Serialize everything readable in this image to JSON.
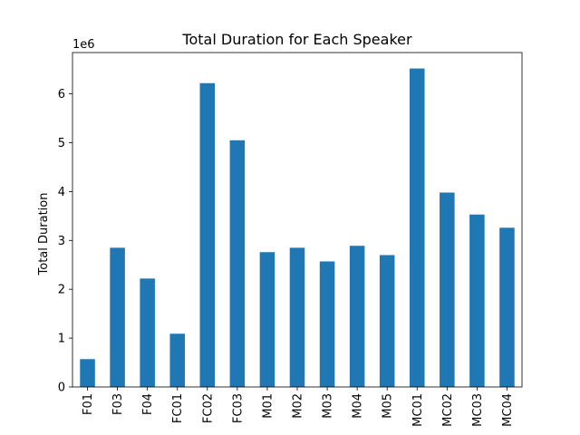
{
  "chart_data": {
    "type": "bar",
    "title": "Total Duration for Each Speaker",
    "xlabel": "",
    "ylabel": "Total Duration",
    "offset_text": "1e6",
    "categories": [
      "F01",
      "F03",
      "F04",
      "FC01",
      "FC02",
      "FC03",
      "M01",
      "M02",
      "M03",
      "M04",
      "M05",
      "MC01",
      "MC02",
      "MC03",
      "MC04"
    ],
    "values": [
      570000,
      2850000,
      2220000,
      1090000,
      6220000,
      5050000,
      2760000,
      2850000,
      2570000,
      2890000,
      2700000,
      6520000,
      3980000,
      3530000,
      3260000
    ],
    "ylim": [
      0,
      6846000
    ],
    "yticks": [
      0,
      1000000,
      2000000,
      3000000,
      4000000,
      5000000,
      6000000
    ],
    "ytick_labels": [
      "0",
      "1",
      "2",
      "3",
      "4",
      "5",
      "6"
    ],
    "bar_color": "#1f77b4",
    "grid": false,
    "legend": "none"
  }
}
